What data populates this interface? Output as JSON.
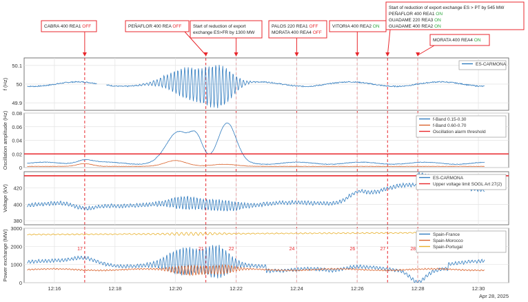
{
  "annotations": [
    {
      "lines": [
        [
          {
            "t": "CABRA  400  REA1 ",
            "c": "dark"
          },
          {
            "t": "OFF",
            "c": "off"
          }
        ]
      ],
      "event_time": "12:17"
    },
    {
      "lines": [
        [
          {
            "t": "PEÑAFLOR  400  REA ",
            "c": "dark"
          },
          {
            "t": "OFF",
            "c": "off"
          }
        ]
      ],
      "event_time": "12:21"
    },
    {
      "lines": [
        [
          {
            "t": "Start  of  reduction  of  export",
            "c": "dark"
          }
        ],
        [
          {
            "t": "exchange  ES>FR  by  1300  MW",
            "c": "dark"
          }
        ]
      ],
      "event_time": "12:22"
    },
    {
      "lines": [
        [
          {
            "t": "PALOS  220  REA1 ",
            "c": "dark"
          },
          {
            "t": "OFF",
            "c": "off"
          }
        ],
        [
          {
            "t": "MORATA  400  REA4 ",
            "c": "dark"
          },
          {
            "t": "OFF",
            "c": "off"
          }
        ]
      ],
      "event_time": "12:24"
    },
    {
      "lines": [
        [
          {
            "t": "VITORIA  400  REA2 ",
            "c": "dark"
          },
          {
            "t": "ON",
            "c": "on"
          }
        ]
      ],
      "event_time": "12:26"
    },
    {
      "lines": [
        [
          {
            "t": "Start  of  reduction  of  export  exchange  ES  >  PT  by  545  MW",
            "c": "dark"
          }
        ],
        [
          {
            "t": "PEÑAFLOR  400  REA1 ",
            "c": "dark"
          },
          {
            "t": "ON",
            "c": "on"
          }
        ],
        [
          {
            "t": "GUADAME  220  REA3 ",
            "c": "dark"
          },
          {
            "t": "ON",
            "c": "on"
          }
        ],
        [
          {
            "t": "GUADAME  400  REA2 ",
            "c": "dark"
          },
          {
            "t": "ON",
            "c": "on"
          }
        ]
      ],
      "event_time": "12:27"
    },
    {
      "lines": [
        [
          {
            "t": "MORATA  400  REA4 ",
            "c": "dark"
          },
          {
            "t": "ON",
            "c": "on"
          }
        ]
      ],
      "event_time": "12:28"
    }
  ],
  "colors": {
    "off": "#e8262b",
    "on": "#2aa53a",
    "dark": "#222222",
    "event_line": "#e8262b",
    "blue": "#2f7bbf",
    "orange": "#d9622b",
    "yellow": "#e8b02a",
    "threshold": "#e8262b"
  },
  "chart_data": [
    {
      "type": "line",
      "ylabel": "f (Hz)",
      "ylim": [
        49.86,
        50.14
      ],
      "yticks": [
        "50.1",
        "50",
        "49.9"
      ],
      "grid": true,
      "legend_position": "top-right",
      "series": [
        {
          "name": "ES-CARMONA",
          "color_key": "blue",
          "wave": "freq"
        }
      ]
    },
    {
      "type": "line",
      "ylabel": "Oscillation amplitude (Hz)",
      "ylim": [
        0,
        0.08
      ],
      "yticks": [
        "0.08",
        "0.06",
        "0.04",
        "0.02",
        "0"
      ],
      "grid": true,
      "legend_position": "top-right",
      "series": [
        {
          "name": "f-Band 0.15-0.30",
          "color_key": "blue",
          "wave": "band1"
        },
        {
          "name": "f-Band 0.60-0.70",
          "color_key": "orange",
          "wave": "band2"
        },
        {
          "name": "Oscillation alarm threshold",
          "color_key": "threshold",
          "wave": "const",
          "value": 0.02
        }
      ]
    },
    {
      "type": "line",
      "ylabel": "Voltage (kV)",
      "ylim": [
        375,
        440
      ],
      "yticks": [
        "420",
        "400",
        "380"
      ],
      "grid": true,
      "legend_position": "top-right",
      "series": [
        {
          "name": "ES-CARMONA",
          "color_key": "blue",
          "wave": "volt"
        },
        {
          "name": "Upper voltage limit SOGL Art 27(2)",
          "color_key": "threshold",
          "wave": "const",
          "value": 435
        }
      ]
    },
    {
      "type": "line",
      "ylabel": "Power exchange (MW)",
      "ylim": [
        0,
        3000
      ],
      "yticks": [
        "3000",
        "2000",
        "1000",
        "0"
      ],
      "grid": true,
      "legend_position": "top-right",
      "series": [
        {
          "name": "Spain-France",
          "color_key": "blue",
          "wave": "france"
        },
        {
          "name": "Spain-Morocco",
          "color_key": "orange",
          "wave": "morocco"
        },
        {
          "name": "Spain-Portugal",
          "color_key": "yellow",
          "wave": "portugal"
        }
      ],
      "event_markers": [
        "17",
        "21",
        "22",
        "24",
        "26",
        "27",
        "28"
      ]
    }
  ],
  "x_axis": {
    "xlim": [
      "12:15",
      "12:31"
    ],
    "ticks": [
      "12:16",
      "12:18",
      "12:20",
      "12:22",
      "12:24",
      "12:26",
      "12:28",
      "12:30"
    ],
    "date_label": "Apr 28, 2025"
  }
}
